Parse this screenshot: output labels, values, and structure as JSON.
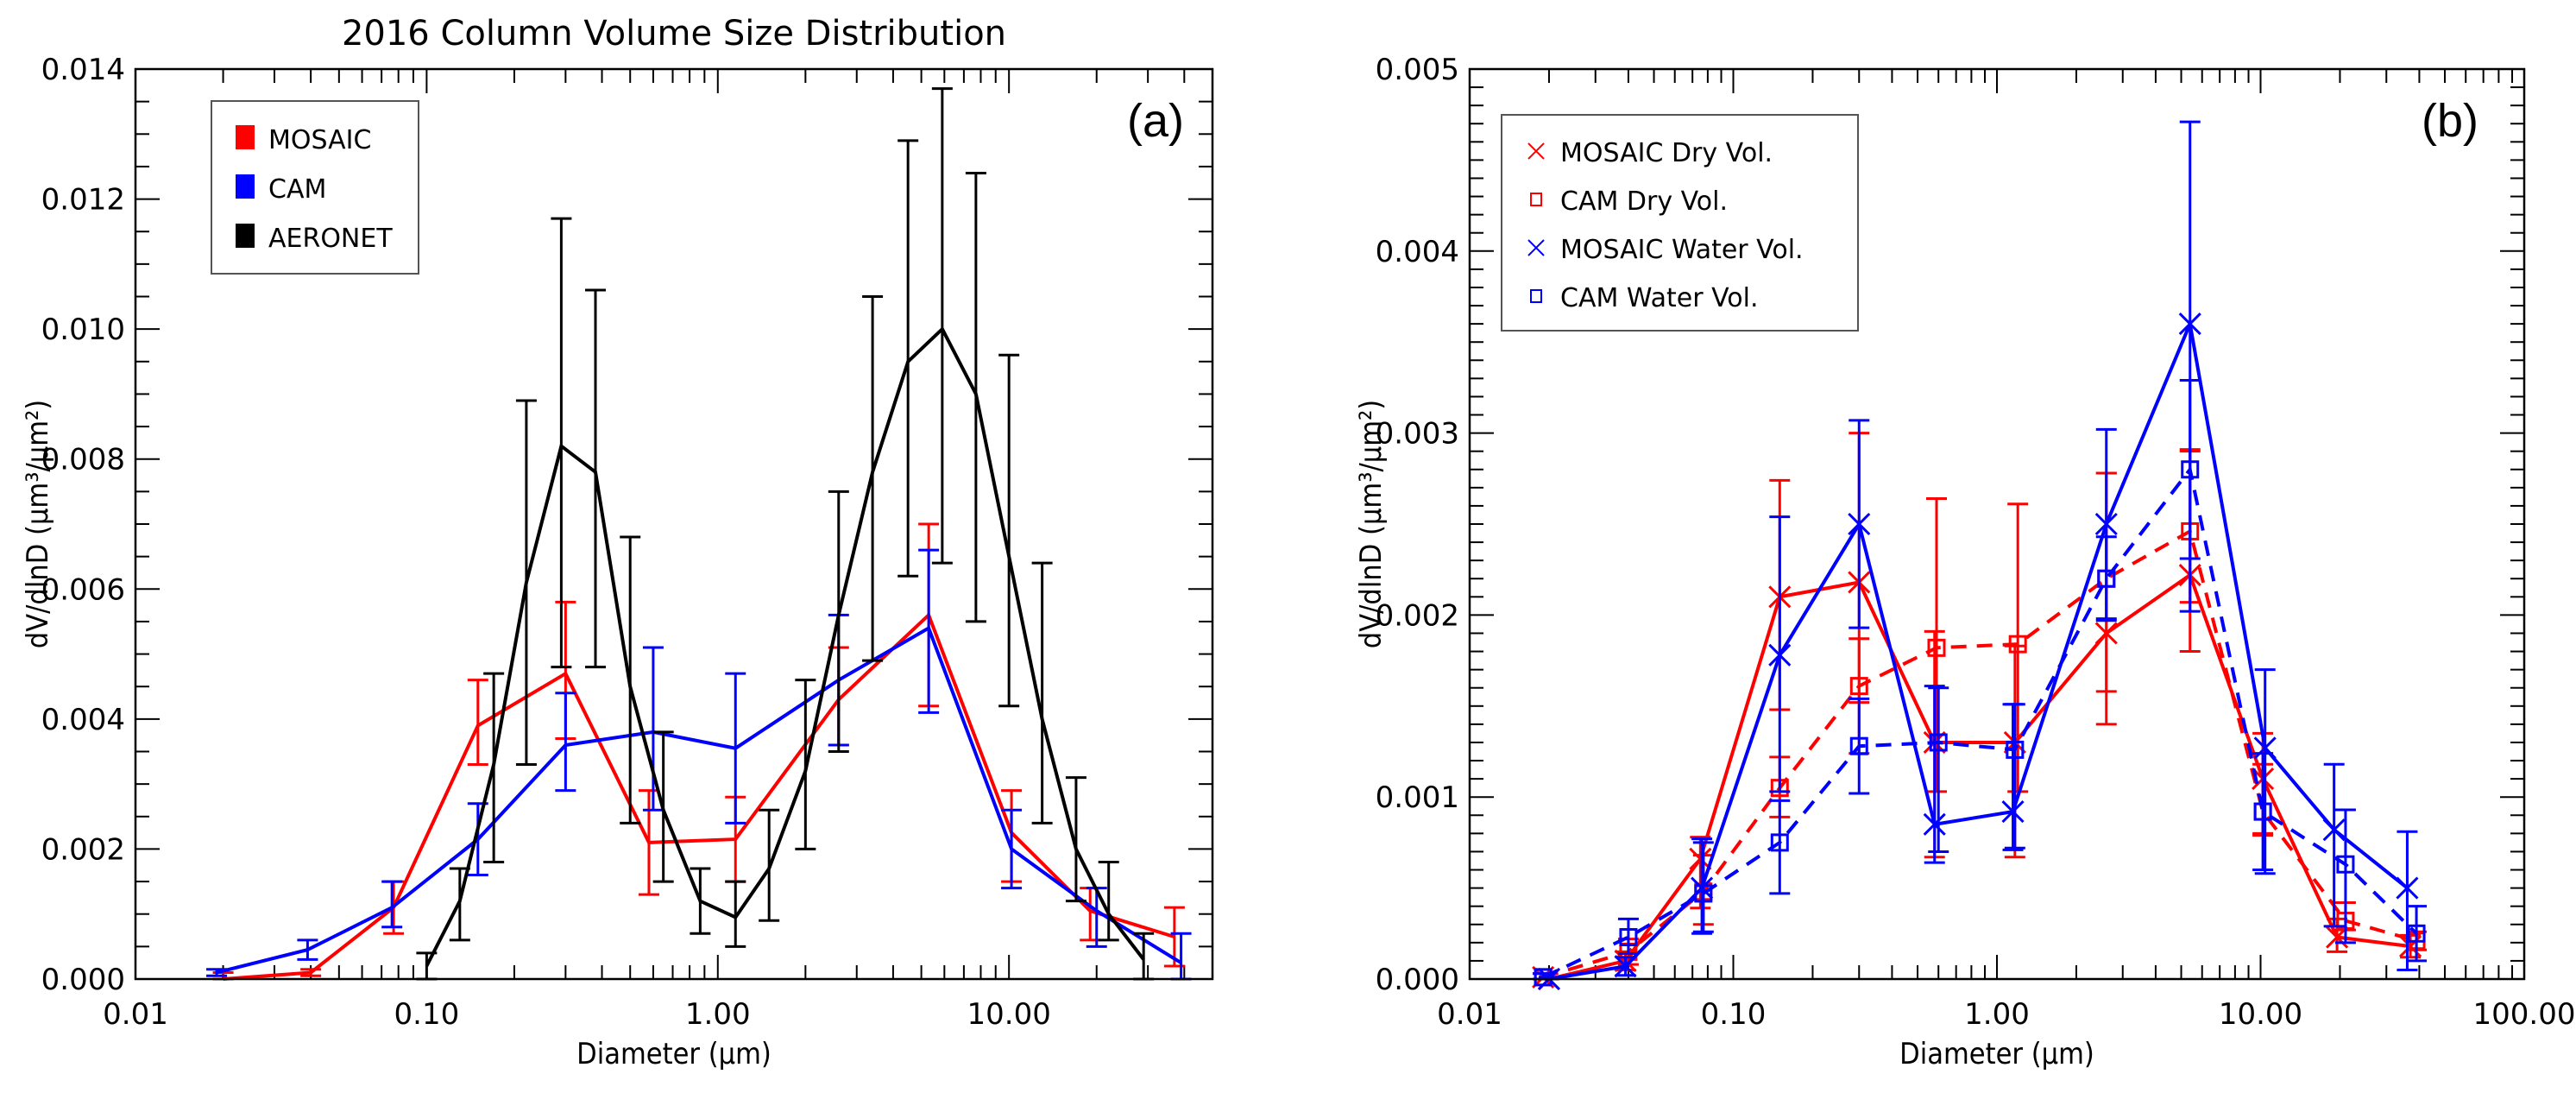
{
  "chart_data": [
    {
      "type": "line",
      "panel_label": "(a)",
      "title": "2016 Column Volume Size Distribution",
      "xlabel": "Diameter (μm)",
      "ylabel": "dV/dlnD (μm³/μm²)",
      "xscale": "log",
      "xlim": [
        0.01,
        50
      ],
      "ylim": [
        0,
        0.014
      ],
      "xticks": [
        {
          "v": 0.01,
          "label": "0.01"
        },
        {
          "v": 0.1,
          "label": "0.10"
        },
        {
          "v": 1,
          "label": "1.00"
        },
        {
          "v": 10,
          "label": "10.00"
        }
      ],
      "yticks": [
        {
          "v": 0,
          "label": "0.000"
        },
        {
          "v": 0.002,
          "label": "0.002"
        },
        {
          "v": 0.004,
          "label": "0.004"
        },
        {
          "v": 0.006,
          "label": "0.006"
        },
        {
          "v": 0.008,
          "label": "0.008"
        },
        {
          "v": 0.01,
          "label": "0.010"
        },
        {
          "v": 0.012,
          "label": "0.012"
        },
        {
          "v": 0.014,
          "label": "0.014"
        }
      ],
      "legend": {
        "position": "top-left",
        "style": "swatch",
        "entries": [
          {
            "label": "MOSAIC",
            "color": "#ff0000"
          },
          {
            "label": "CAM",
            "color": "#0000ff"
          },
          {
            "label": "AERONET",
            "color": "#000000"
          }
        ]
      },
      "series": [
        {
          "name": "MOSAIC",
          "color": "#ff0000",
          "dash": false,
          "marker": "none",
          "x": [
            0.02,
            0.04,
            0.077,
            0.15,
            0.3,
            0.58,
            1.15,
            2.6,
            5.3,
            10.2,
            19,
            37
          ],
          "y": [
            0.0,
            0.0001,
            0.0011,
            0.0039,
            0.0047,
            0.0021,
            0.00215,
            0.0043,
            0.0056,
            0.00225,
            0.00105,
            0.00065
          ],
          "err_low": [
            0.0,
            5e-05,
            0.0007,
            0.0033,
            0.0037,
            0.0013,
            0.0015,
            0.0036,
            0.0042,
            0.0015,
            0.0006,
            0.0002
          ],
          "err_high": [
            0.0001,
            0.00015,
            0.0015,
            0.0046,
            0.0058,
            0.0029,
            0.0028,
            0.0051,
            0.007,
            0.0029,
            0.0014,
            0.0011
          ]
        },
        {
          "name": "CAM",
          "color": "#0000ff",
          "dash": false,
          "marker": "none",
          "x": [
            0.019,
            0.039,
            0.076,
            0.15,
            0.3,
            0.6,
            1.15,
            2.6,
            5.3,
            10.2,
            20,
            39
          ],
          "y": [
            0.0001,
            0.00045,
            0.0011,
            0.00215,
            0.0036,
            0.0038,
            0.00355,
            0.0046,
            0.0054,
            0.002,
            0.00105,
            0.00025
          ],
          "err_low": [
            5e-05,
            0.0003,
            0.0008,
            0.0016,
            0.0029,
            0.0026,
            0.0024,
            0.0036,
            0.0041,
            0.0014,
            0.0005,
            0.0
          ],
          "err_high": [
            0.00015,
            0.0006,
            0.0015,
            0.0027,
            0.0044,
            0.0051,
            0.0047,
            0.0056,
            0.0066,
            0.0026,
            0.0014,
            0.0007
          ]
        },
        {
          "name": "AERONET",
          "color": "#000000",
          "dash": false,
          "marker": "none",
          "x": [
            0.1,
            0.13,
            0.17,
            0.22,
            0.29,
            0.38,
            0.5,
            0.65,
            0.87,
            1.15,
            1.5,
            2.0,
            2.6,
            3.4,
            4.5,
            5.9,
            7.7,
            10.0,
            13.0,
            17.0,
            22.0,
            29.0
          ],
          "y": [
            0.0002,
            0.0012,
            0.0033,
            0.0061,
            0.0082,
            0.0078,
            0.0045,
            0.0026,
            0.0012,
            0.00095,
            0.0017,
            0.0032,
            0.0056,
            0.0078,
            0.0095,
            0.01,
            0.009,
            0.0065,
            0.004,
            0.002,
            0.001,
            0.0003
          ],
          "err_low": [
            0.0,
            0.0006,
            0.0018,
            0.0033,
            0.0048,
            0.0048,
            0.0024,
            0.0015,
            0.0007,
            0.0005,
            0.0009,
            0.002,
            0.0035,
            0.0049,
            0.0062,
            0.0064,
            0.0055,
            0.0042,
            0.0024,
            0.0012,
            0.0006,
            0.0
          ],
          "err_high": [
            0.0004,
            0.0017,
            0.0047,
            0.0089,
            0.0117,
            0.0106,
            0.0068,
            0.0038,
            0.0017,
            0.0015,
            0.0026,
            0.0046,
            0.0075,
            0.0105,
            0.0129,
            0.0137,
            0.0124,
            0.0096,
            0.0064,
            0.0031,
            0.0018,
            0.0007
          ]
        }
      ]
    },
    {
      "type": "line",
      "panel_label": "(b)",
      "title": "",
      "xlabel": "Diameter (μm)",
      "ylabel": "dV/dlnD (μm³/μm²)",
      "xscale": "log",
      "xlim": [
        0.01,
        100
      ],
      "ylim": [
        0,
        0.005
      ],
      "xticks": [
        {
          "v": 0.01,
          "label": "0.01"
        },
        {
          "v": 0.1,
          "label": "0.10"
        },
        {
          "v": 1,
          "label": "1.00"
        },
        {
          "v": 10,
          "label": "10.00"
        },
        {
          "v": 100,
          "label": "100.00"
        }
      ],
      "yticks": [
        {
          "v": 0,
          "label": "0.000"
        },
        {
          "v": 0.001,
          "label": "0.001"
        },
        {
          "v": 0.002,
          "label": "0.002"
        },
        {
          "v": 0.003,
          "label": "0.003"
        },
        {
          "v": 0.004,
          "label": "0.004"
        },
        {
          "v": 0.005,
          "label": "0.005"
        }
      ],
      "legend": {
        "position": "top-left",
        "style": "marker",
        "entries": [
          {
            "label": "MOSAIC Dry Vol.",
            "color": "#ff0000",
            "marker": "x"
          },
          {
            "label": "CAM Dry Vol.",
            "color": "#ff0000",
            "marker": "square"
          },
          {
            "label": "MOSAIC Water Vol.",
            "color": "#0000ff",
            "marker": "x"
          },
          {
            "label": "CAM Water Vol.",
            "color": "#0000ff",
            "marker": "square"
          }
        ]
      },
      "series": [
        {
          "name": "MOSAIC Dry Vol.",
          "color": "#ff0000",
          "dash": false,
          "marker": "x",
          "x": [
            0.019,
            0.02,
            0.039,
            0.075,
            0.15,
            0.3,
            0.58,
            1.17,
            2.6,
            5.4,
            10.2,
            19.5,
            37
          ],
          "y": [
            1e-05,
            0.0,
            0.0001,
            0.00066,
            0.0021,
            0.00218,
            0.0013,
            0.0013,
            0.0019,
            0.00222,
            0.0011,
            0.00023,
            0.00018
          ],
          "err_low": [
            0.0,
            0.0,
            5e-05,
            0.00039,
            0.00148,
            0.00152,
            0.00067,
            0.00067,
            0.0014,
            0.0018,
            0.0008,
            0.00015,
            0.00012
          ],
          "err_high": [
            3e-05,
            1e-05,
            0.00015,
            0.00078,
            0.00274,
            0.003,
            0.00191,
            0.00183,
            0.00278,
            0.0029,
            0.00135,
            0.00033,
            0.00024
          ]
        },
        {
          "name": "CAM Dry Vol.",
          "color": "#ff0000",
          "dash": true,
          "marker": "square",
          "x": [
            0.019,
            0.04,
            0.077,
            0.15,
            0.3,
            0.59,
            1.2,
            2.6,
            5.4,
            10.2,
            21,
            39
          ],
          "y": [
            1e-05,
            0.00015,
            0.00048,
            0.00105,
            0.00161,
            0.00182,
            0.00184,
            0.0022,
            0.00246,
            0.00092,
            0.00032,
            0.00021
          ],
          "err_low": [
            0.0,
            8e-05,
            0.0003,
            0.00089,
            0.00124,
            0.00103,
            0.00103,
            0.00158,
            0.00207,
            0.00079,
            0.00027,
            0.00016
          ],
          "err_high": [
            3e-05,
            0.00022,
            0.00068,
            0.00122,
            0.00187,
            0.00264,
            0.00261,
            0.00278,
            0.00291,
            0.00118,
            0.00042,
            0.00026
          ]
        },
        {
          "name": "MOSAIC Water Vol.",
          "color": "#0000ff",
          "dash": false,
          "marker": "x",
          "x": [
            0.02,
            0.039,
            0.076,
            0.15,
            0.3,
            0.58,
            1.15,
            2.6,
            5.4,
            10.4,
            19,
            36
          ],
          "y": [
            0.0,
            7e-05,
            0.0005,
            0.00178,
            0.0025,
            0.00085,
            0.00092,
            0.0025,
            0.0036,
            0.00127,
            0.00082,
            0.0005
          ],
          "err_low": [
            0.0,
            2e-05,
            0.00025,
            0.00103,
            0.00193,
            0.00064,
            0.00071,
            0.00197,
            0.00202,
            0.00058,
            0.00029,
            5e-05
          ],
          "err_high": [
            1e-05,
            0.00012,
            0.00077,
            0.00254,
            0.00307,
            0.00161,
            0.00151,
            0.00302,
            0.00471,
            0.0017,
            0.00118,
            0.00081
          ]
        },
        {
          "name": "CAM Water Vol.",
          "color": "#0000ff",
          "dash": true,
          "marker": "square",
          "x": [
            0.019,
            0.04,
            0.077,
            0.15,
            0.3,
            0.6,
            1.17,
            2.6,
            5.4,
            10.2,
            21,
            39
          ],
          "y": [
            1e-05,
            0.00023,
            0.00047,
            0.00075,
            0.00128,
            0.0013,
            0.00126,
            0.0022,
            0.0028,
            0.00092,
            0.00063,
            0.00025
          ],
          "err_low": [
            0.0,
            0.00014,
            0.00026,
            0.00047,
            0.00102,
            0.0007,
            0.00072,
            0.00198,
            0.00231,
            0.0006,
            0.0002,
            0.0001
          ],
          "err_high": [
            3e-05,
            0.00033,
            0.00075,
            0.00098,
            0.00154,
            0.0016,
            0.00151,
            0.00243,
            0.00329,
            0.00124,
            0.00093,
            0.0004
          ]
        }
      ]
    }
  ]
}
